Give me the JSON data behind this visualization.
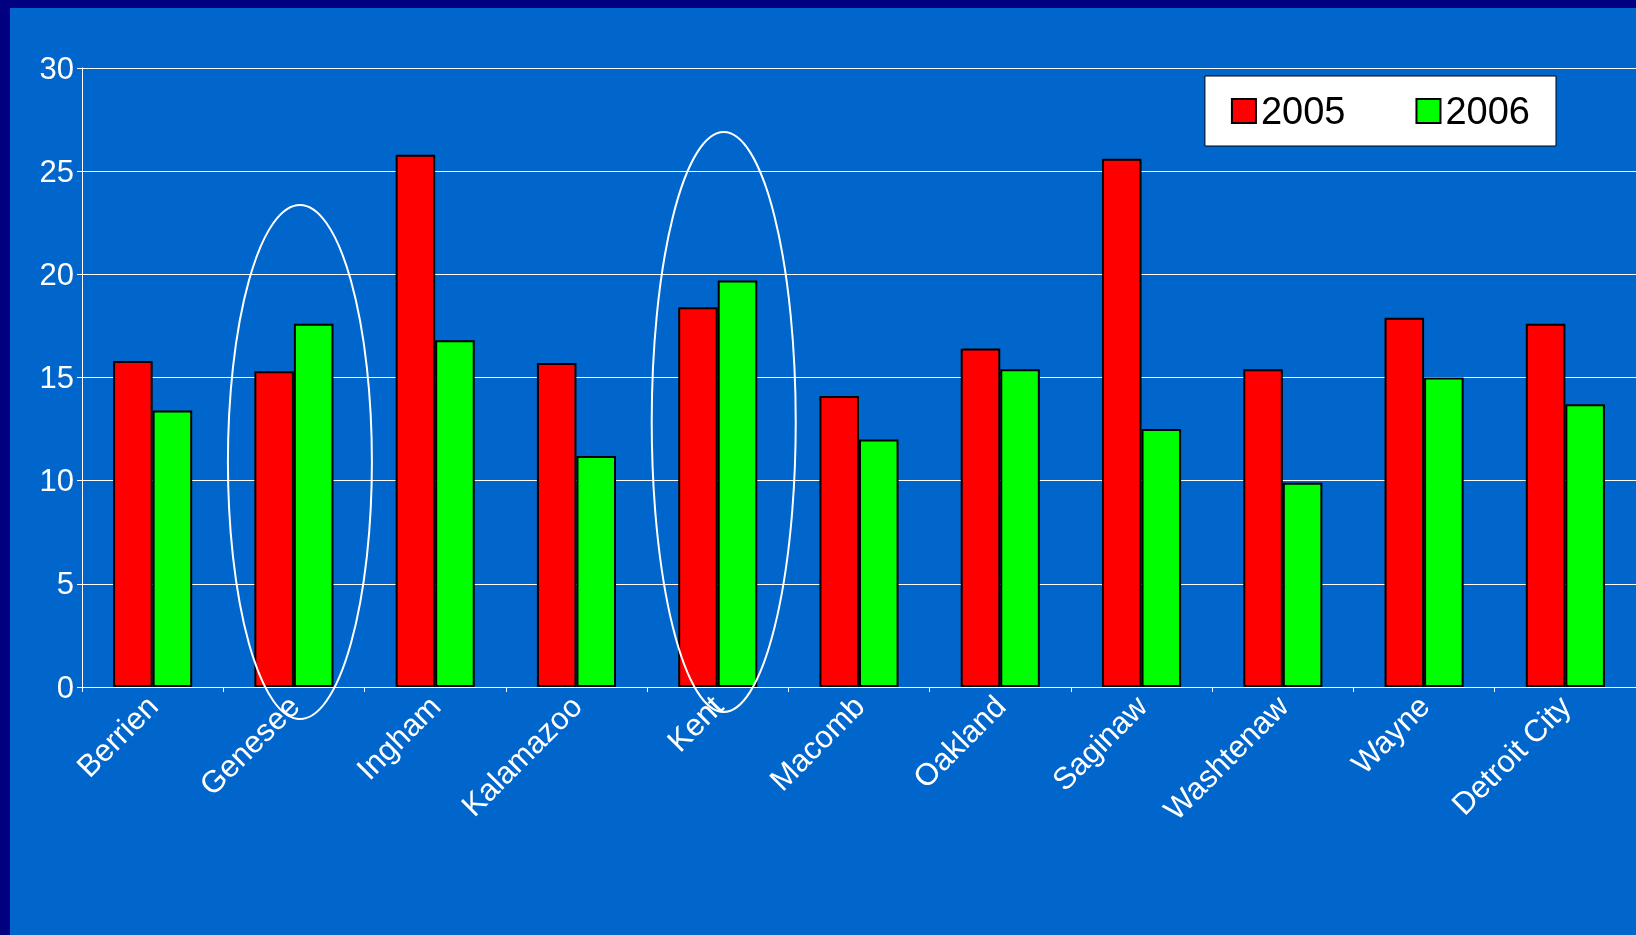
{
  "chart_data": {
    "type": "bar",
    "categories": [
      "Berrien",
      "Genesee",
      "Ingham",
      "Kalamazoo",
      "Kent",
      "Macomb",
      "Oakland",
      "Saginaw",
      "Washtenaw",
      "Wayne",
      "Detroit City"
    ],
    "series": [
      {
        "name": "2005",
        "color": "#ff0000",
        "values": [
          15.8,
          15.3,
          25.8,
          15.7,
          18.4,
          14.1,
          16.4,
          25.6,
          15.4,
          17.9,
          17.6
        ]
      },
      {
        "name": "2006",
        "color": "#00ff00",
        "values": [
          13.4,
          17.6,
          16.8,
          11.2,
          19.7,
          12.0,
          15.4,
          12.5,
          9.9,
          15.0,
          13.7
        ]
      }
    ],
    "ylim": [
      0,
      30
    ],
    "yticks": [
      0,
      5,
      10,
      15,
      20,
      25,
      30
    ],
    "grid": "y",
    "legend": "top right"
  }
}
